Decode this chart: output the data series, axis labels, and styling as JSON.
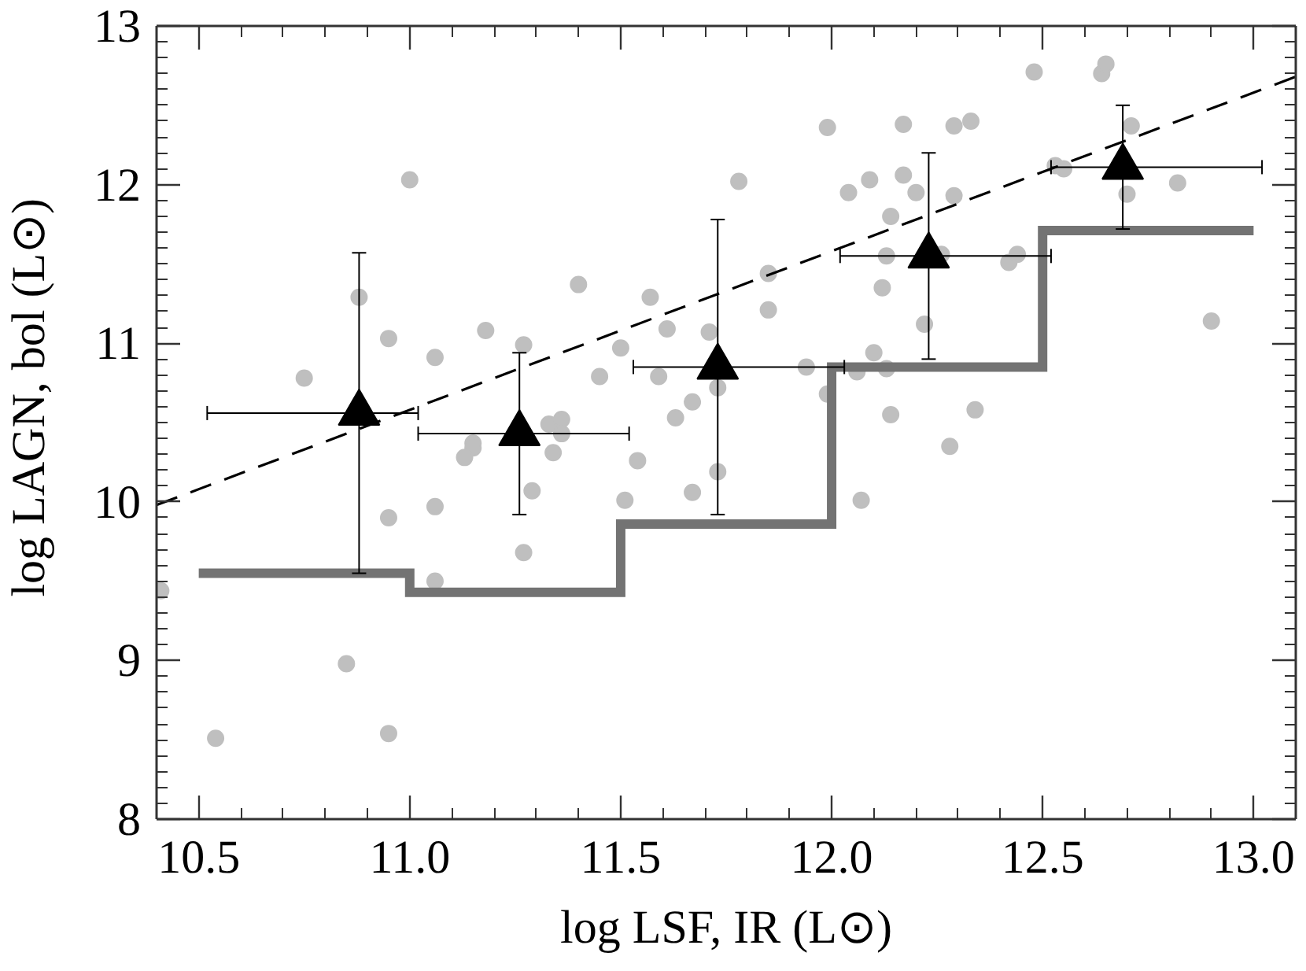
{
  "chart_data": {
    "type": "scatter",
    "xlabel": "log LSF, IR (L⊙)",
    "ylabel": "log LAGN, bol (L⊙)",
    "xlim": [
      10.4,
      13.1
    ],
    "ylim": [
      8,
      13
    ],
    "xticks": [
      10.5,
      {
        "value": 10.6,
        "label": null
      },
      {
        "value": 10.7,
        "label": null
      },
      {
        "value": 10.8,
        "label": null
      },
      {
        "value": 10.9,
        "label": null
      },
      {
        "value": 11,
        "label": "11.0"
      },
      {
        "value": 11.1,
        "label": null
      },
      {
        "value": 11.2,
        "label": null
      },
      {
        "value": 11.3,
        "label": null
      },
      {
        "value": 11.4,
        "label": null
      },
      11.5,
      {
        "value": 11.6,
        "label": null
      },
      {
        "value": 11.7,
        "label": null
      },
      {
        "value": 11.8,
        "label": null
      },
      {
        "value": 11.9,
        "label": null
      },
      {
        "value": 12,
        "label": "12.0"
      },
      {
        "value": 12.1,
        "label": null
      },
      {
        "value": 12.2,
        "label": null
      },
      {
        "value": 12.3,
        "label": null
      },
      {
        "value": 12.4,
        "label": null
      },
      12.5,
      {
        "value": 12.6,
        "label": null
      },
      {
        "value": 12.7,
        "label": null
      },
      {
        "value": 12.8,
        "label": null
      },
      {
        "value": 12.9,
        "label": null
      },
      {
        "value": 13,
        "label": "13.0"
      }
    ],
    "yticks": [
      8,
      {
        "value": 8.1,
        "label": null
      },
      {
        "value": 8.2,
        "label": null
      },
      {
        "value": 8.3,
        "label": null
      },
      {
        "value": 8.4,
        "label": null
      },
      {
        "value": 8.5,
        "label": null
      },
      {
        "value": 8.6,
        "label": null
      },
      {
        "value": 8.7,
        "label": null
      },
      {
        "value": 8.8,
        "label": null
      },
      {
        "value": 8.9,
        "label": null
      },
      9,
      {
        "value": 9.1,
        "label": null
      },
      {
        "value": 9.2,
        "label": null
      },
      {
        "value": 9.3,
        "label": null
      },
      {
        "value": 9.4,
        "label": null
      },
      {
        "value": 9.5,
        "label": null
      },
      {
        "value": 9.6,
        "label": null
      },
      {
        "value": 9.7,
        "label": null
      },
      {
        "value": 9.8,
        "label": null
      },
      {
        "value": 9.9,
        "label": null
      },
      10,
      {
        "value": 10.1,
        "label": null
      },
      {
        "value": 10.2,
        "label": null
      },
      {
        "value": 10.3,
        "label": null
      },
      {
        "value": 10.4,
        "label": null
      },
      {
        "value": 10.5,
        "label": null
      },
      {
        "value": 10.6,
        "label": null
      },
      {
        "value": 10.7,
        "label": null
      },
      {
        "value": 10.8,
        "label": null
      },
      {
        "value": 10.9,
        "label": null
      },
      11,
      {
        "value": 11.1,
        "label": null
      },
      {
        "value": 11.2,
        "label": null
      },
      {
        "value": 11.3,
        "label": null
      },
      {
        "value": 11.4,
        "label": null
      },
      {
        "value": 11.5,
        "label": null
      },
      {
        "value": 11.6,
        "label": null
      },
      {
        "value": 11.7,
        "label": null
      },
      {
        "value": 11.8,
        "label": null
      },
      {
        "value": 11.9,
        "label": null
      },
      12,
      {
        "value": 12.1,
        "label": null
      },
      {
        "value": 12.2,
        "label": null
      },
      {
        "value": 12.3,
        "label": null
      },
      {
        "value": 12.4,
        "label": null
      },
      {
        "value": 12.5,
        "label": null
      },
      {
        "value": 12.6,
        "label": null
      },
      {
        "value": 12.7,
        "label": null
      },
      {
        "value": 12.8,
        "label": null
      },
      {
        "value": 12.9,
        "label": null
      },
      13
    ],
    "series": [
      {
        "marker": "circle",
        "color": "#bfbfbf",
        "x": [
          11.0,
          10.88,
          10.95,
          10.75,
          11.06,
          11.18,
          11.27,
          11.4,
          11.57,
          11.61,
          11.5,
          11.45,
          11.59,
          11.33,
          11.36,
          11.36,
          11.15,
          11.15,
          11.13,
          11.34,
          11.54,
          11.29,
          11.51,
          11.71,
          10.95,
          11.06,
          11.27,
          11.06,
          10.41,
          10.85,
          10.54,
          10.95,
          12.48,
          12.64,
          12.65,
          11.99,
          12.17,
          12.29,
          12.33,
          12.71,
          11.78,
          12.04,
          12.09,
          12.17,
          12.2,
          12.29,
          12.14,
          12.53,
          12.55,
          12.82,
          12.7,
          11.85,
          11.85,
          12.13,
          12.12,
          12.26,
          12.22,
          12.42,
          12.44,
          12.9,
          11.67,
          11.63,
          11.73,
          11.94,
          11.99,
          12.06,
          12.1,
          12.13,
          12.14,
          12.34,
          12.28,
          11.73,
          11.67,
          12.07
        ],
        "values": [
          12.03,
          11.29,
          11.03,
          10.78,
          10.91,
          11.08,
          10.99,
          11.37,
          11.29,
          11.09,
          10.97,
          10.79,
          10.79,
          10.49,
          10.52,
          10.43,
          10.37,
          10.34,
          10.28,
          10.31,
          10.26,
          10.07,
          10.01,
          11.07,
          9.9,
          9.97,
          9.68,
          9.5,
          9.44,
          8.98,
          8.51,
          8.54,
          12.71,
          12.7,
          12.76,
          12.36,
          12.38,
          12.37,
          12.4,
          12.37,
          12.02,
          11.95,
          12.03,
          12.06,
          11.95,
          11.93,
          11.8,
          12.12,
          12.1,
          12.01,
          11.94,
          11.44,
          11.21,
          11.55,
          11.35,
          11.56,
          11.12,
          11.51,
          11.56,
          11.14,
          10.63,
          10.53,
          10.72,
          10.85,
          10.68,
          10.82,
          10.94,
          10.84,
          10.55,
          10.58,
          10.35,
          10.19,
          10.06,
          10.01
        ]
      },
      {
        "type": "line",
        "line_style": "dashed",
        "color": "#000000",
        "x": [
          10.4,
          13.1
        ],
        "values": [
          9.98,
          12.68
        ]
      },
      {
        "type": "step",
        "color": "#737373",
        "x": [
          10.5,
          11.0,
          11.5,
          12.0,
          12.5,
          13.0
        ],
        "values": [
          9.55,
          9.43,
          9.86,
          10.85,
          11.71,
          11.71
        ]
      },
      {
        "marker": "triangle",
        "color": "#000000",
        "x": [
          10.88,
          11.26,
          11.73,
          12.23,
          12.69
        ],
        "values": [
          10.56,
          10.43,
          10.85,
          11.55,
          12.11
        ],
        "errors": [
          1.01,
          0.51,
          0.93,
          0.65,
          0.39
        ],
        "xerrors": [
          [
            10.52,
            11.02
          ],
          [
            11.02,
            11.52
          ],
          [
            11.53,
            12.03
          ],
          [
            12.02,
            12.52
          ],
          [
            12.52,
            13.02
          ]
        ]
      }
    ]
  }
}
